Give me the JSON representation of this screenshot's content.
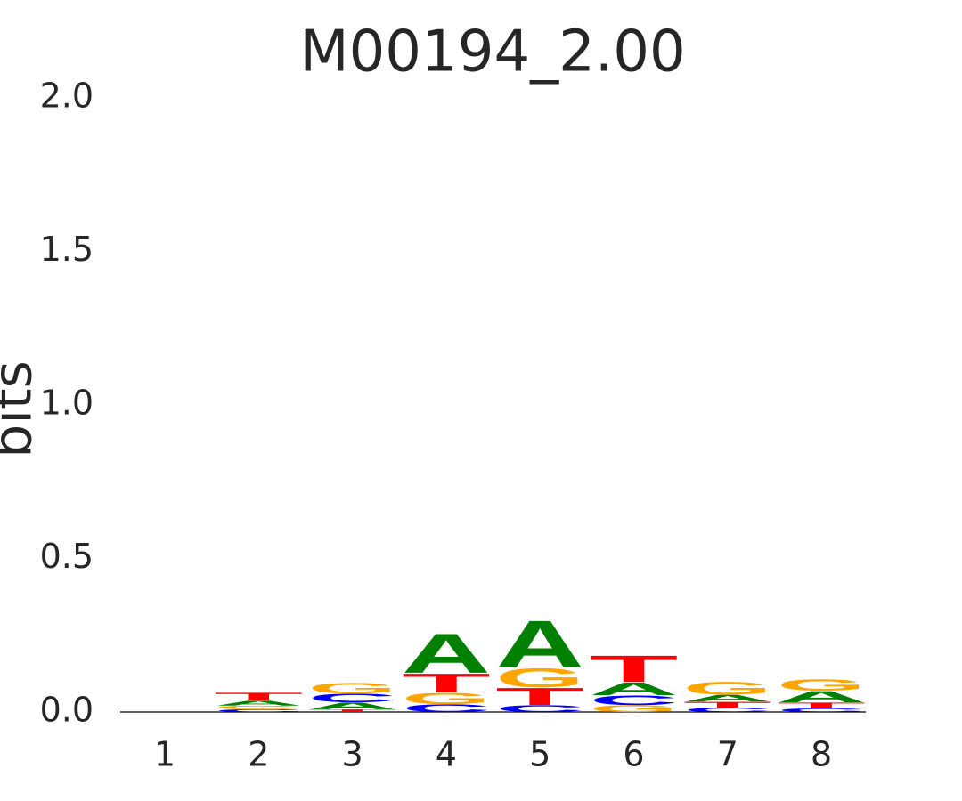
{
  "chart_data": {
    "type": "logo",
    "title": "M00194_2.00",
    "y_label": "bits",
    "categories": [
      "1",
      "2",
      "3",
      "4",
      "5",
      "6",
      "7",
      "8"
    ],
    "series": [
      {
        "name": "A",
        "color": "#008000",
        "values": [
          0,
          0.017,
          0.023,
          0.133,
          0.16,
          0.043,
          0.023,
          0.038
        ]
      },
      {
        "name": "C",
        "color": "#0000ff",
        "values": [
          0,
          0.009,
          0.029,
          0.026,
          0.023,
          0.032,
          0.014,
          0.012
        ]
      },
      {
        "name": "G",
        "color": "#ffa500",
        "values": [
          0,
          0.012,
          0.035,
          0.038,
          0.064,
          0.023,
          0.043,
          0.038
        ]
      },
      {
        "name": "T",
        "color": "#ff0000",
        "values": [
          0,
          0.026,
          0.009,
          0.064,
          0.058,
          0.09,
          0.02,
          0.02
        ]
      }
    ],
    "ylim": [
      0,
      2
    ],
    "yticks": [
      {
        "value": 0,
        "label": "0.0"
      },
      0.5,
      {
        "value": 1,
        "label": "1.0"
      },
      1.5,
      {
        "value": 2,
        "label": "2.0"
      }
    ]
  }
}
